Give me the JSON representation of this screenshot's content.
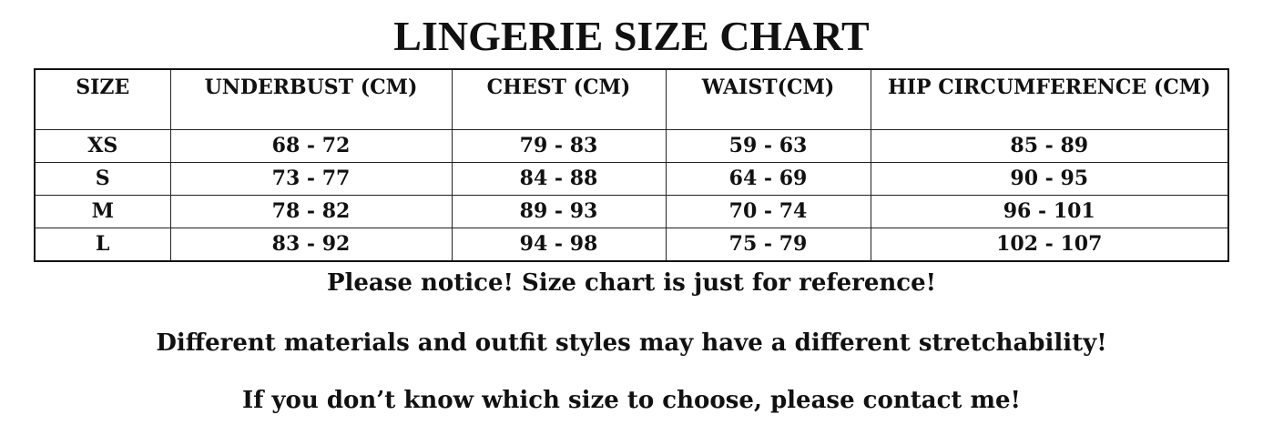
{
  "title": "LINGERIE SIZE CHART",
  "table": {
    "headers": [
      "SIZE",
      "UNDERBUST (CM)",
      "CHEST (CM)",
      "WAIST(CM)",
      "HIP CIRCUMFERENCE (CM)"
    ],
    "rows": [
      [
        "XS",
        "68 - 72",
        "79 - 83",
        "59 - 63",
        "85 - 89"
      ],
      [
        "S",
        "73 - 77",
        "84 - 88",
        "64 - 69",
        "90 - 95"
      ],
      [
        "M",
        "78 - 82",
        "89 - 93",
        "70 - 74",
        "96 - 101"
      ],
      [
        "L",
        "83 - 92",
        "94 - 98",
        "75 - 79",
        "102 - 107"
      ]
    ]
  },
  "notes": [
    "Please notice! Size chart is just for reference!",
    "Different materials and outfit styles may have a different stretchability!",
    "If you don’t know which size to choose, please contact me!"
  ]
}
